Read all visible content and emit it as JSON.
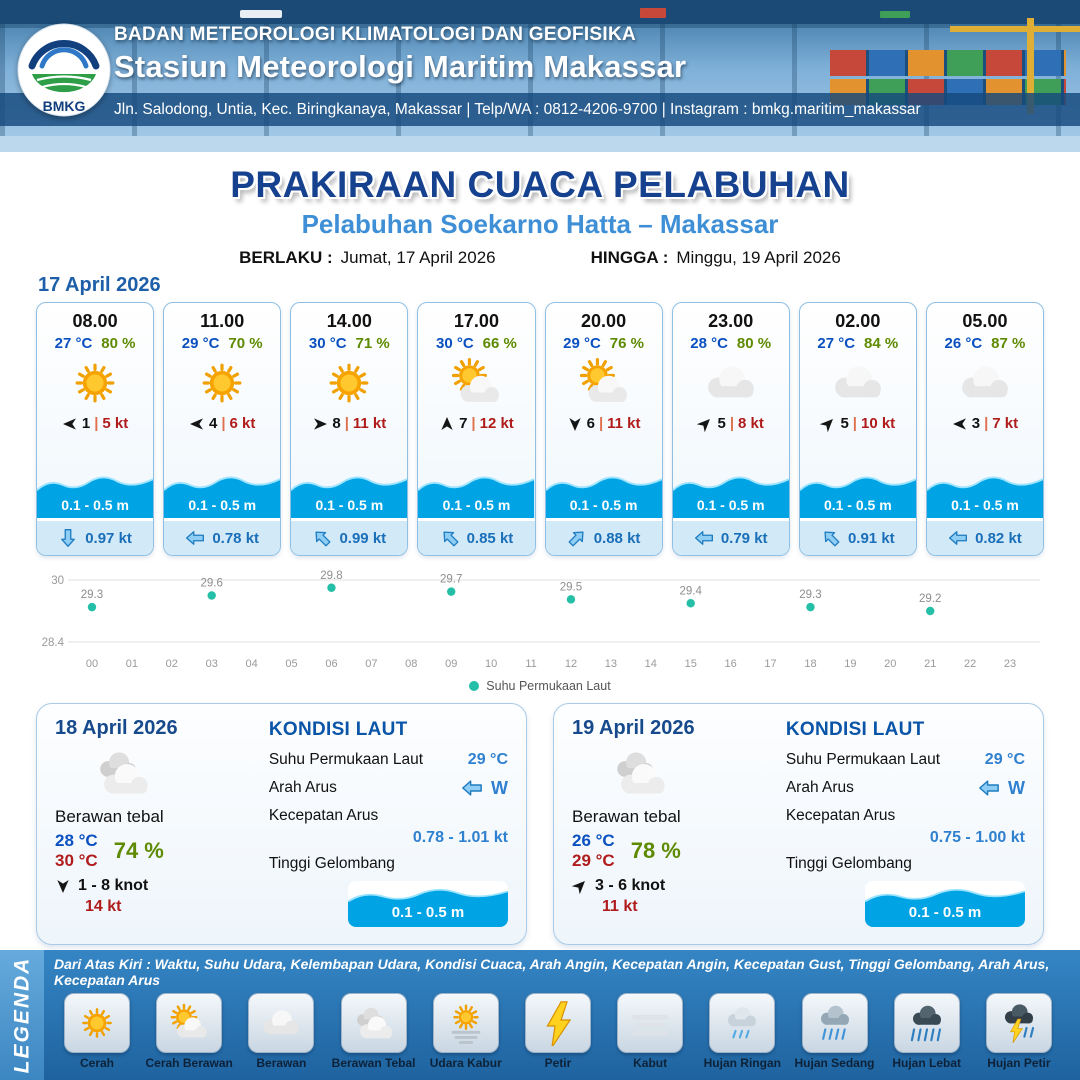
{
  "header": {
    "logo_text": "BMKG",
    "org": "BADAN METEOROLOGI KLIMATOLOGI DAN GEOFISIKA",
    "station": "Stasiun Meteorologi Maritim Makassar",
    "address": "Jln. Salodong, Untia, Kec. Biringkanaya, Makassar | Telp/WA : 0812-4206-9700 | Instagram : bmkg.maritim_makassar"
  },
  "title": {
    "main": "PRAKIRAAN CUACA PELABUHAN",
    "sub": "Pelabuhan Soekarno Hatta – Makassar",
    "valid_label": "BERLAKU :",
    "valid_value": "Jumat, 17 April 2026",
    "until_label": "HINGGA :",
    "until_value": "Minggu, 19 April 2026"
  },
  "hourly_date": "17 April 2026",
  "hourly": [
    {
      "time": "08.00",
      "temp": "27 °C",
      "rh": "80 %",
      "icon": "cerah",
      "wind_deg": 0,
      "wind_num": "1",
      "wind_kt": "5 kt",
      "wave": "0.1 - 0.5 m",
      "cur_deg": 270,
      "cur": "0.97 kt"
    },
    {
      "time": "11.00",
      "temp": "29 °C",
      "rh": "70 %",
      "icon": "cerah",
      "wind_deg": 0,
      "wind_num": "4",
      "wind_kt": "6 kt",
      "wave": "0.1 - 0.5 m",
      "cur_deg": 0,
      "cur": "0.78 kt"
    },
    {
      "time": "14.00",
      "temp": "30 °C",
      "rh": "71 %",
      "icon": "cerah",
      "wind_deg": 180,
      "wind_num": "8",
      "wind_kt": "11 kt",
      "wave": "0.1 - 0.5 m",
      "cur_deg": 45,
      "cur": "0.99 kt"
    },
    {
      "time": "17.00",
      "temp": "30 °C",
      "rh": "66 %",
      "icon": "cerah-berawan",
      "wind_deg": 90,
      "wind_num": "7",
      "wind_kt": "12 kt",
      "wave": "0.1 - 0.5 m",
      "cur_deg": 45,
      "cur": "0.85 kt"
    },
    {
      "time": "20.00",
      "temp": "29 °C",
      "rh": "76 %",
      "icon": "cerah-berawan",
      "wind_deg": 270,
      "wind_num": "6",
      "wind_kt": "11 kt",
      "wave": "0.1 - 0.5 m",
      "cur_deg": 135,
      "cur": "0.88 kt"
    },
    {
      "time": "23.00",
      "temp": "28 °C",
      "rh": "80 %",
      "icon": "berawan",
      "wind_deg": 135,
      "wind_num": "5",
      "wind_kt": "8 kt",
      "wave": "0.1 - 0.5 m",
      "cur_deg": 0,
      "cur": "0.79 kt"
    },
    {
      "time": "02.00",
      "temp": "27 °C",
      "rh": "84 %",
      "icon": "berawan",
      "wind_deg": 135,
      "wind_num": "5",
      "wind_kt": "10 kt",
      "wave": "0.1 - 0.5 m",
      "cur_deg": 45,
      "cur": "0.91 kt"
    },
    {
      "time": "05.00",
      "temp": "26 °C",
      "rh": "87 %",
      "icon": "berawan",
      "wind_deg": 0,
      "wind_num": "3",
      "wind_kt": "7 kt",
      "wave": "0.1 - 0.5 m",
      "cur_deg": 0,
      "cur": "0.82 kt"
    }
  ],
  "chart_data": {
    "type": "scatter",
    "title": "Suhu Permukaan Laut",
    "legend": "Suhu Permukaan Laut",
    "x": [
      0,
      3,
      6,
      9,
      12,
      15,
      18,
      21
    ],
    "values": [
      29.3,
      29.6,
      29.8,
      29.7,
      29.5,
      29.4,
      29.3,
      29.2
    ],
    "x_ticks": [
      "00",
      "01",
      "02",
      "03",
      "04",
      "05",
      "06",
      "07",
      "08",
      "09",
      "10",
      "11",
      "12",
      "13",
      "14",
      "15",
      "16",
      "17",
      "18",
      "19",
      "20",
      "21",
      "22",
      "23"
    ],
    "ylim": [
      28.4,
      30
    ],
    "y_ticks": [
      "30",
      "28.4"
    ],
    "grid": "horizontal",
    "legend_position": "bottom-center",
    "point_color": "#25bfa8"
  },
  "daily": [
    {
      "date": "18 April 2026",
      "icon": "berawan-tebal",
      "cond": "Berawan tebal",
      "temp_min": "28 °C",
      "temp_max": "30 °C",
      "rh": "74 %",
      "wind_deg": 270,
      "wind_range": "1 - 8 knot",
      "gust": "14 kt",
      "sea_title": "KONDISI LAUT",
      "sst_label": "Suhu Permukaan Laut",
      "sst": "29 °C",
      "cur_dir_label": "Arah Arus",
      "cur_dir_deg": 0,
      "cur_dir": "W",
      "cur_speed_label": "Kecepatan Arus",
      "cur_speed": "0.78 - 1.01 kt",
      "wave_label": "Tinggi Gelombang",
      "wave": "0.1 - 0.5 m"
    },
    {
      "date": "19 April 2026",
      "icon": "berawan-tebal",
      "cond": "Berawan tebal",
      "temp_min": "26 °C",
      "temp_max": "29 °C",
      "rh": "78 %",
      "wind_deg": 135,
      "wind_range": "3 - 6 knot",
      "gust": "11 kt",
      "sea_title": "KONDISI LAUT",
      "sst_label": "Suhu Permukaan Laut",
      "sst": "29 °C",
      "cur_dir_label": "Arah Arus",
      "cur_dir_deg": 0,
      "cur_dir": "W",
      "cur_speed_label": "Kecepatan Arus",
      "cur_speed": "0.75 - 1.00 kt",
      "wave_label": "Tinggi Gelombang",
      "wave": "0.1 - 0.5 m"
    }
  ],
  "legend_section": {
    "title": "LEGENDA",
    "note": "Dari Atas Kiri : Waktu, Suhu Udara, Kelembapan Udara, Kondisi Cuaca, Arah Angin, Kecepatan Angin, Kecepatan Gust, Tinggi Gelombang, Arah Arus, Kecepatan Arus",
    "items": [
      {
        "icon": "cerah",
        "label": "Cerah"
      },
      {
        "icon": "cerah-berawan",
        "label": "Cerah Berawan"
      },
      {
        "icon": "berawan",
        "label": "Berawan"
      },
      {
        "icon": "berawan-tebal",
        "label": "Berawan Tebal"
      },
      {
        "icon": "udara-kabur",
        "label": "Udara Kabur"
      },
      {
        "icon": "petir",
        "label": "Petir"
      },
      {
        "icon": "kabut",
        "label": "Kabut"
      },
      {
        "icon": "hujan-ringan",
        "label": "Hujan Ringan"
      },
      {
        "icon": "hujan-sedang",
        "label": "Hujan Sedang"
      },
      {
        "icon": "hujan-lebat",
        "label": "Hujan Lebat"
      },
      {
        "icon": "hujan-petir",
        "label": "Hujan Petir"
      }
    ]
  }
}
